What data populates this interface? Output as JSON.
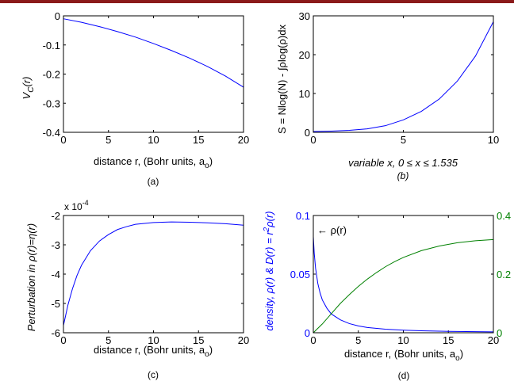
{
  "colors": {
    "blue": "#0000ff",
    "green": "#008000",
    "topbar": "#8b1a1a",
    "axis": "#000000"
  },
  "chart_data": [
    {
      "id": "a",
      "type": "line",
      "panel_label": "(a)",
      "xlabel": "distance r, (Bohr units, a",
      "xlabel_sub": "o",
      "xlabel_end": ")",
      "ylabel": "V",
      "ylabel_sub": "C",
      "ylabel_end": "(r)",
      "xlim": [
        0,
        20
      ],
      "ylim": [
        -0.4,
        0
      ],
      "xticks": [
        0,
        5,
        10,
        15,
        20
      ],
      "xtick_labels": [
        "0",
        "5",
        "10",
        "15",
        "20"
      ],
      "yticks": [
        -0.4,
        -0.3,
        -0.2,
        -0.1,
        0
      ],
      "ytick_labels": [
        "-0.4",
        "-0.3",
        "-0.2",
        "-0.1",
        "0"
      ],
      "series": [
        {
          "color": "#0000ff",
          "x": [
            0,
            2,
            4,
            6,
            8,
            10,
            12,
            14,
            16,
            18,
            20
          ],
          "y": [
            -0.01,
            -0.022,
            -0.037,
            -0.054,
            -0.073,
            -0.095,
            -0.119,
            -0.145,
            -0.174,
            -0.207,
            -0.245
          ]
        }
      ]
    },
    {
      "id": "b",
      "type": "line",
      "panel_label": "(b)",
      "xlabel": "variable x, 0 ≤ x ≤ 1.535",
      "ylabel": "S = Nlog(N) - ∫ρlog(ρ)dx",
      "xlim": [
        0,
        10
      ],
      "ylim": [
        0,
        30
      ],
      "xticks": [
        0,
        5,
        10
      ],
      "xtick_labels": [
        "0",
        "5",
        "10"
      ],
      "yticks": [
        0,
        10,
        20,
        30
      ],
      "ytick_labels": [
        "0",
        "10",
        "20",
        "30"
      ],
      "series": [
        {
          "color": "#0000ff",
          "x": [
            0,
            1,
            2,
            3,
            4,
            5,
            6,
            7,
            8,
            9,
            10
          ],
          "y": [
            0.2,
            0.3,
            0.5,
            0.9,
            1.7,
            3.2,
            5.4,
            8.6,
            13.2,
            19.6,
            28.5
          ]
        }
      ]
    },
    {
      "id": "c",
      "type": "line",
      "panel_label": "(c)",
      "scale_note": "x 10",
      "scale_note_exp": "-4",
      "xlabel": "distance r, (Bohr units, a",
      "xlabel_sub": "o",
      "xlabel_end": ")",
      "ylabel": "Perturbation in ρ(r)=η(r)",
      "xlim": [
        0,
        20
      ],
      "ylim": [
        -6,
        -2
      ],
      "xticks": [
        0,
        5,
        10,
        15,
        20
      ],
      "xtick_labels": [
        "0",
        "5",
        "10",
        "15",
        "20"
      ],
      "yticks": [
        -6,
        -5,
        -4,
        -3,
        -2
      ],
      "ytick_labels": [
        "-6",
        "-5",
        "-4",
        "-3",
        "-2"
      ],
      "series": [
        {
          "color": "#0000ff",
          "x": [
            0,
            0.5,
            1,
            1.5,
            2,
            3,
            4,
            5,
            6,
            7,
            8,
            10,
            12,
            14,
            16,
            18,
            20
          ],
          "y": [
            -5.75,
            -5.05,
            -4.5,
            -4.05,
            -3.7,
            -3.2,
            -2.87,
            -2.65,
            -2.48,
            -2.38,
            -2.3,
            -2.24,
            -2.22,
            -2.23,
            -2.25,
            -2.28,
            -2.33
          ]
        }
      ]
    },
    {
      "id": "d",
      "type": "line",
      "panel_label": "(d)",
      "xlabel": "distance r, (Bohr units, a",
      "xlabel_sub": "o",
      "xlabel_end": ")",
      "ylabel": "density, ρ(r) & D(r) = r",
      "ylabel_sup": "2",
      "ylabel_end": "ρ(r)",
      "annotation": "← ρ(r)",
      "xlim": [
        0,
        20
      ],
      "ylim_left": [
        0,
        0.1
      ],
      "ylim_right": [
        0,
        0.4
      ],
      "xticks": [
        0,
        5,
        10,
        15,
        20
      ],
      "xtick_labels": [
        "0",
        "5",
        "10",
        "15",
        "20"
      ],
      "yticks_left": [
        0,
        0.05,
        0.1
      ],
      "ytick_labels_left": [
        "0",
        "0.05",
        "0.1"
      ],
      "yticks_right": [
        0,
        0.2,
        0.4
      ],
      "ytick_labels_right": [
        "0",
        "0.2",
        "0.4"
      ],
      "series": [
        {
          "color": "#0000ff",
          "axis": "left",
          "x": [
            0,
            0.1,
            0.25,
            0.5,
            0.75,
            1,
            1.5,
            2,
            3,
            4,
            5,
            6,
            8,
            10,
            12,
            15,
            18,
            20
          ],
          "y": [
            0.082,
            0.068,
            0.055,
            0.042,
            0.034,
            0.028,
            0.021,
            0.016,
            0.011,
            0.0078,
            0.0058,
            0.0045,
            0.003,
            0.0022,
            0.0017,
            0.0012,
            0.0009,
            0.0008
          ]
        },
        {
          "color": "#008000",
          "axis": "right",
          "x": [
            0,
            1,
            2,
            3,
            4,
            5,
            6,
            7,
            8,
            9,
            10,
            12,
            14,
            16,
            18,
            20
          ],
          "y": [
            0,
            0.03,
            0.065,
            0.1,
            0.13,
            0.158,
            0.183,
            0.205,
            0.225,
            0.242,
            0.257,
            0.28,
            0.296,
            0.307,
            0.314,
            0.318
          ]
        }
      ]
    }
  ]
}
